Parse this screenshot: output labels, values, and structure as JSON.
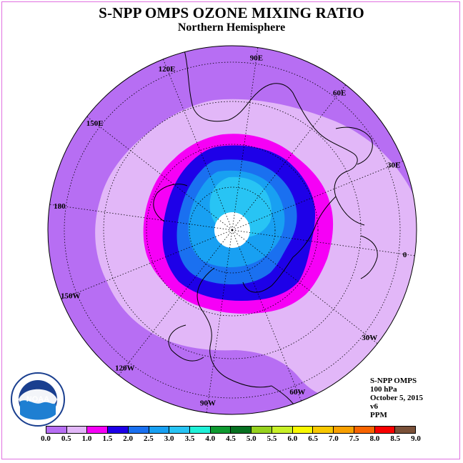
{
  "header": {
    "title": "S-NPP OMPS OZONE MIXING RATIO",
    "subtitle": "Northern Hemisphere"
  },
  "map": {
    "projection": "polar stereographic (north)",
    "longitude_labels": [
      {
        "text": "90E"
      },
      {
        "text": "60E"
      },
      {
        "text": "30E"
      },
      {
        "text": "0"
      },
      {
        "text": "30W"
      },
      {
        "text": "60W"
      },
      {
        "text": "90W"
      },
      {
        "text": "120W"
      },
      {
        "text": "150W"
      },
      {
        "text": "180"
      },
      {
        "text": "150E"
      },
      {
        "text": "120E"
      }
    ]
  },
  "info": {
    "lines": [
      "S-NPP OMPS",
      "100 hPa",
      "October 5, 2015",
      "v6",
      "PPM"
    ]
  },
  "colorbar": {
    "ticks": [
      "0.0",
      "0.5",
      "1.0",
      "1.5",
      "2.0",
      "2.5",
      "3.0",
      "3.5",
      "4.0",
      "4.5",
      "5.0",
      "5.5",
      "6.0",
      "6.5",
      "7.0",
      "7.5",
      "8.0",
      "8.5",
      "9.0"
    ],
    "colors": [
      "#b76ef3",
      "#e2b7f8",
      "#f600f6",
      "#1e00e8",
      "#1a70f0",
      "#18a0f2",
      "#28c4f4",
      "#20f0d8",
      "#0e9a30",
      "#067020",
      "#96d21e",
      "#c8f028",
      "#f8f800",
      "#f8c800",
      "#f8a000",
      "#f86400",
      "#f80000",
      "#7a5038"
    ]
  },
  "logo": {
    "text": "NOAA"
  }
}
